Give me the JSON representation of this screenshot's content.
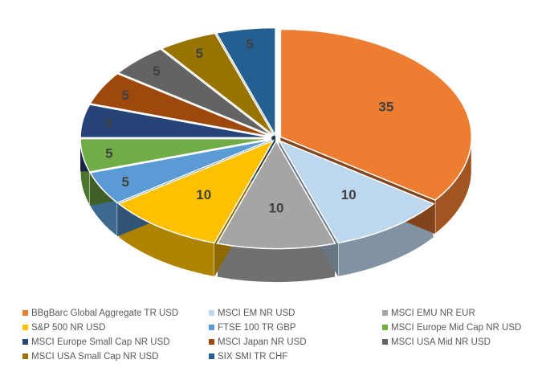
{
  "chart_data": {
    "type": "pie",
    "title": "",
    "categories": [
      "BBgBarc Global Aggregate TR USD",
      "MSCI EM NR USD",
      "MSCI EMU NR EUR",
      "S&P 500 NR USD",
      "FTSE 100 TR GBP",
      "MSCI Europe Mid Cap NR USD",
      "MSCI Europe Small Cap NR USD",
      "MSCI Japan NR USD",
      "MSCI USA Mid NR USD",
      "MSCI USA Small Cap NR USD",
      "SIX SMI TR CHF"
    ],
    "values": [
      35,
      10,
      10,
      10,
      5,
      5,
      5,
      5,
      5,
      5,
      5
    ],
    "labels": [
      "35",
      "10",
      "10",
      "10",
      "5",
      "5",
      "5",
      "5",
      "5",
      "5",
      "5"
    ],
    "colors": [
      "#ED7D31",
      "#BDD7EE",
      "#A5A5A5",
      "#FFC000",
      "#5B9BD5",
      "#70AD47",
      "#264478",
      "#9E480E",
      "#636363",
      "#997300",
      "#255E91"
    ],
    "legend_position": "bottom",
    "style": "3d-exploded"
  }
}
